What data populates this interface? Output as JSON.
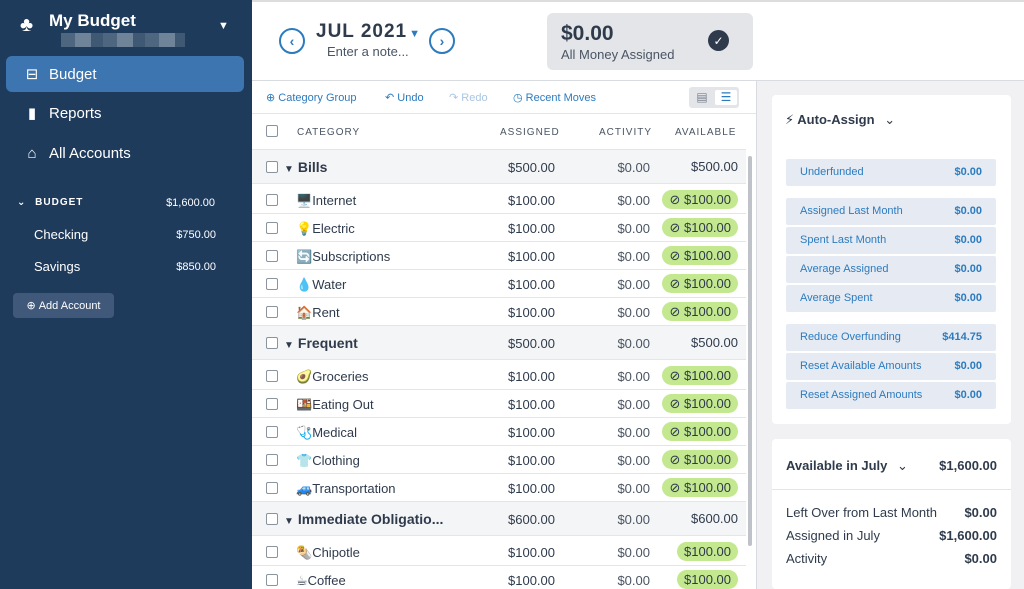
{
  "sidebar": {
    "budget_name": "My Budget",
    "nav": [
      {
        "label": "Budget",
        "icon": "budget-icon"
      },
      {
        "label": "Reports",
        "icon": "bar-chart-icon"
      },
      {
        "label": "All Accounts",
        "icon": "bank-icon"
      }
    ],
    "accounts_header": {
      "label": "BUDGET",
      "amount": "$1,600.00"
    },
    "accounts": [
      {
        "name": "Checking",
        "amount": "$750.00"
      },
      {
        "name": "Savings",
        "amount": "$850.00"
      }
    ],
    "add_account": "Add Account"
  },
  "header": {
    "month": "JUL 2021",
    "note_placeholder": "Enter a note...",
    "to_be_budgeted": {
      "amount": "$0.00",
      "label": "All Money Assigned"
    }
  },
  "toolbar": {
    "category_group": "Category Group",
    "undo": "Undo",
    "redo": "Redo",
    "recent_moves": "Recent Moves"
  },
  "columns": {
    "category": "CATEGORY",
    "assigned": "ASSIGNED",
    "activity": "ACTIVITY",
    "available": "AVAILABLE"
  },
  "groups": [
    {
      "name": "Bills",
      "assigned": "$500.00",
      "activity": "$0.00",
      "available": "$500.00",
      "items": [
        {
          "emoji": "🖥️",
          "name": "Internet",
          "assigned": "$100.00",
          "activity": "$0.00",
          "available": "$100.00",
          "icon": true
        },
        {
          "emoji": "💡",
          "name": "Electric",
          "assigned": "$100.00",
          "activity": "$0.00",
          "available": "$100.00",
          "icon": true
        },
        {
          "emoji": "🔄",
          "name": "Subscriptions",
          "assigned": "$100.00",
          "activity": "$0.00",
          "available": "$100.00",
          "icon": true
        },
        {
          "emoji": "💧",
          "name": "Water",
          "assigned": "$100.00",
          "activity": "$0.00",
          "available": "$100.00",
          "icon": true
        },
        {
          "emoji": "🏠",
          "name": "Rent",
          "assigned": "$100.00",
          "activity": "$0.00",
          "available": "$100.00",
          "icon": true
        }
      ]
    },
    {
      "name": "Frequent",
      "assigned": "$500.00",
      "activity": "$0.00",
      "available": "$500.00",
      "items": [
        {
          "emoji": "🥑",
          "name": "Groceries",
          "assigned": "$100.00",
          "activity": "$0.00",
          "available": "$100.00",
          "icon": true
        },
        {
          "emoji": "🍱",
          "name": "Eating Out",
          "assigned": "$100.00",
          "activity": "$0.00",
          "available": "$100.00",
          "icon": true
        },
        {
          "emoji": "🩺",
          "name": "Medical",
          "assigned": "$100.00",
          "activity": "$0.00",
          "available": "$100.00",
          "icon": true
        },
        {
          "emoji": "👕",
          "name": "Clothing",
          "assigned": "$100.00",
          "activity": "$0.00",
          "available": "$100.00",
          "icon": true
        },
        {
          "emoji": "🚙",
          "name": "Transportation",
          "assigned": "$100.00",
          "activity": "$0.00",
          "available": "$100.00",
          "icon": true
        }
      ]
    },
    {
      "name": "Immediate Obligatio...",
      "assigned": "$600.00",
      "activity": "$0.00",
      "available": "$600.00",
      "items": [
        {
          "emoji": "🌯",
          "name": "Chipotle",
          "assigned": "$100.00",
          "activity": "$0.00",
          "available": "$100.00",
          "icon": false
        },
        {
          "emoji": "☕",
          "name": "Coffee",
          "assigned": "$100.00",
          "activity": "$0.00",
          "available": "$100.00",
          "icon": false
        }
      ]
    }
  ],
  "inspector": {
    "auto_assign": "Auto-Assign",
    "rows": [
      {
        "label": "Underfunded",
        "amount": "$0.00"
      },
      {
        "label": "Assigned Last Month",
        "amount": "$0.00"
      },
      {
        "label": "Spent Last Month",
        "amount": "$0.00"
      },
      {
        "label": "Average Assigned",
        "amount": "$0.00"
      },
      {
        "label": "Average Spent",
        "amount": "$0.00"
      },
      {
        "label": "Reduce Overfunding",
        "amount": "$414.75"
      },
      {
        "label": "Reset Available Amounts",
        "amount": "$0.00"
      },
      {
        "label": "Reset Assigned Amounts",
        "amount": "$0.00"
      }
    ],
    "available_in": {
      "label": "Available in July",
      "amount": "$1,600.00"
    },
    "summary": [
      {
        "label": "Left Over from Last Month",
        "amount": "$0.00"
      },
      {
        "label": "Assigned in July",
        "amount": "$1,600.00"
      },
      {
        "label": "Activity",
        "amount": "$0.00"
      }
    ]
  },
  "colors": {
    "sidebar_bg": "#1f3b5c",
    "active_nav": "#3d75b0",
    "accent": "#2c7bbf",
    "funded_pill": "#c3e88f"
  }
}
